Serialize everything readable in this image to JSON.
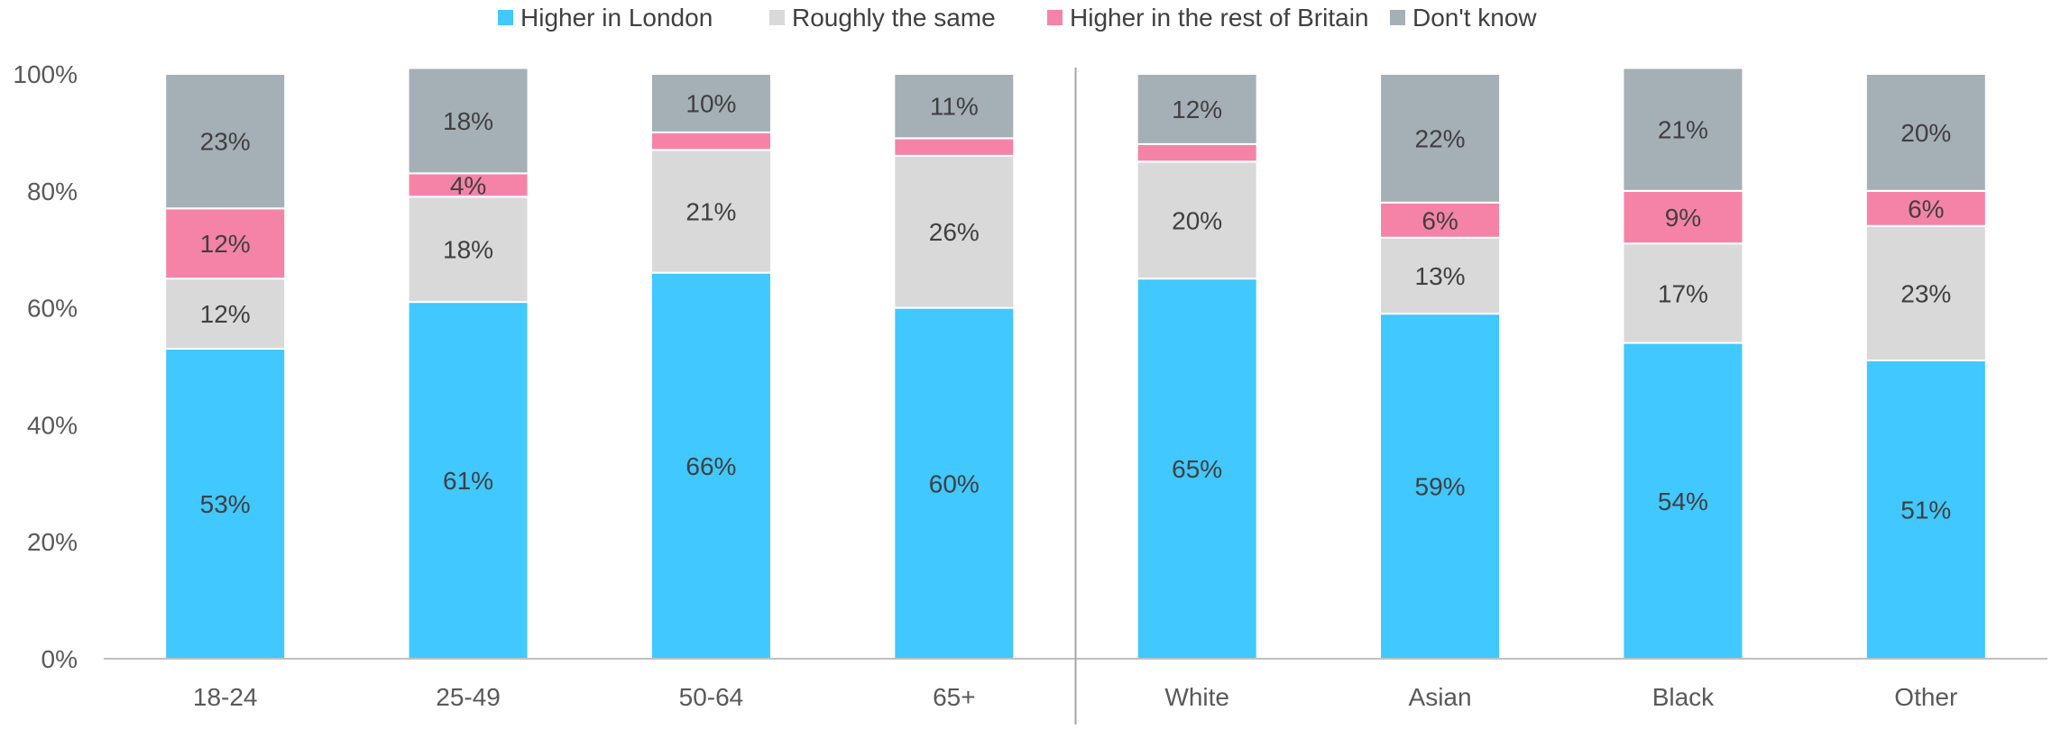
{
  "chart_data": {
    "type": "bar",
    "stacked": true,
    "title": "",
    "xlabel": "",
    "ylabel": "",
    "ylim": [
      0,
      100
    ],
    "y_ticks": [
      "0%",
      "20%",
      "40%",
      "60%",
      "80%",
      "100%"
    ],
    "legend_position": "top",
    "gridlines": false,
    "categories": [
      "18-24",
      "25-49",
      "50-64",
      "65+",
      "White",
      "Asian",
      "Black",
      "Other"
    ],
    "group_separator_after_index": 3,
    "series": [
      {
        "name": "Higher in London",
        "color": "#40C8FF",
        "values": [
          53,
          61,
          66,
          60,
          65,
          59,
          54,
          51
        ],
        "labels": [
          "53%",
          "61%",
          "66%",
          "60%",
          "65%",
          "59%",
          "54%",
          "51%"
        ]
      },
      {
        "name": "Roughly the same",
        "color": "#D9D9D9",
        "values": [
          12,
          18,
          21,
          26,
          20,
          13,
          17,
          23
        ],
        "labels": [
          "12%",
          "18%",
          "21%",
          "26%",
          "20%",
          "13%",
          "17%",
          "23%"
        ]
      },
      {
        "name": "Higher in the rest of Britain",
        "color": "#F583A8",
        "values": [
          12,
          4,
          3,
          3,
          3,
          6,
          9,
          6
        ],
        "labels": [
          "12%",
          "4%",
          "",
          "",
          "",
          "6%",
          "9%",
          "6%"
        ]
      },
      {
        "name": "Don't know",
        "color": "#A5AFB6",
        "values": [
          23,
          18,
          10,
          11,
          12,
          22,
          21,
          20
        ],
        "labels": [
          "23%",
          "18%",
          "10%",
          "11%",
          "12%",
          "22%",
          "21%",
          "20%"
        ]
      }
    ]
  }
}
